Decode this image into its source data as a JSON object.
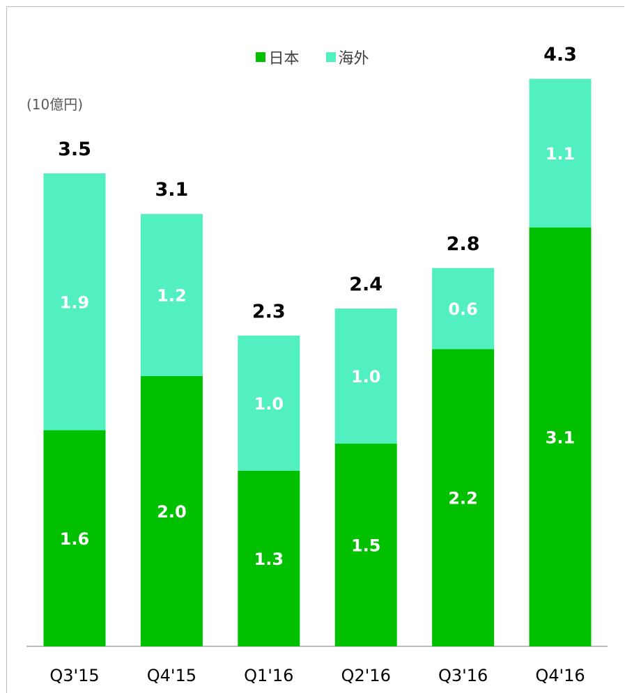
{
  "chart_data": {
    "type": "bar",
    "stacked": true,
    "unit_label": "(10億円)",
    "categories": [
      "Q3'15",
      "Q4'15",
      "Q1'16",
      "Q2'16",
      "Q3'16",
      "Q4'16"
    ],
    "series": [
      {
        "name": "日本",
        "color": "#00c000",
        "values": [
          1.6,
          2.0,
          1.3,
          1.5,
          2.2,
          3.1
        ]
      },
      {
        "name": "海外",
        "color": "#52f0c0",
        "values": [
          1.9,
          1.2,
          1.0,
          1.0,
          0.6,
          1.1
        ]
      }
    ],
    "totals": [
      3.5,
      3.1,
      2.3,
      2.4,
      2.8,
      4.3
    ],
    "labels": {
      "日本": [
        "1.6",
        "2.0",
        "1.3",
        "1.5",
        "2.2",
        "3.1"
      ],
      "海外": [
        "1.9",
        "1.2",
        "1.0",
        "1.0",
        "0.6",
        "1.1"
      ],
      "totals": [
        "3.5",
        "3.1",
        "2.3",
        "2.4",
        "2.8",
        "4.3"
      ]
    },
    "ylim": [
      0,
      4.5
    ],
    "legend_position": "top-center",
    "grid": false
  }
}
